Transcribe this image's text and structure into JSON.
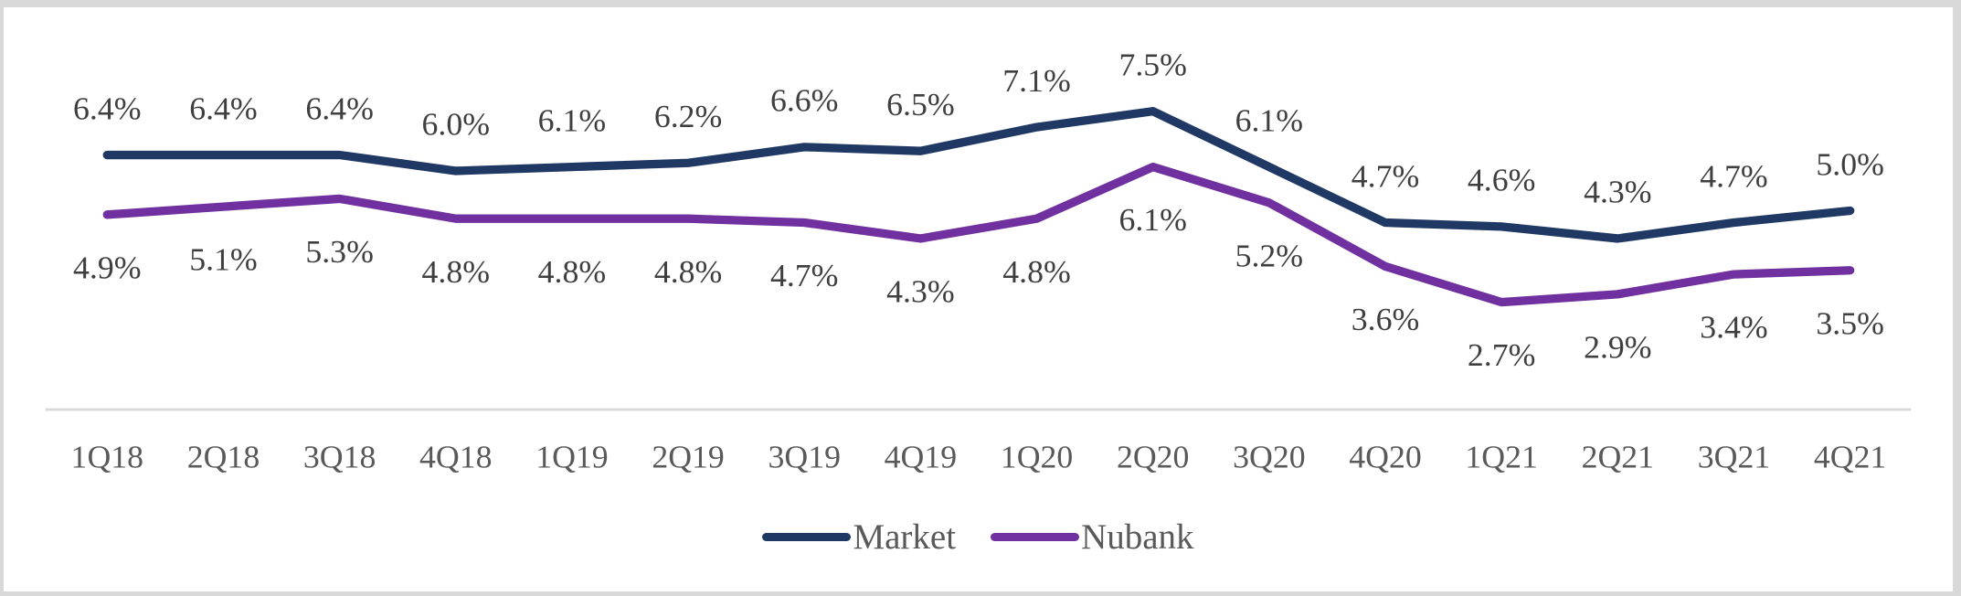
{
  "chart_data": {
    "type": "line",
    "title": "",
    "xlabel": "",
    "ylabel": "",
    "categories": [
      "1Q18",
      "2Q18",
      "3Q18",
      "4Q18",
      "1Q19",
      "2Q19",
      "3Q19",
      "4Q19",
      "1Q20",
      "2Q20",
      "3Q20",
      "4Q20",
      "1Q21",
      "2Q21",
      "3Q21",
      "4Q21"
    ],
    "series": [
      {
        "name": "Market",
        "color": "#1F3864",
        "label_position": "above",
        "values": [
          6.4,
          6.4,
          6.4,
          6.0,
          6.1,
          6.2,
          6.6,
          6.5,
          7.1,
          7.5,
          6.1,
          4.7,
          4.6,
          4.3,
          4.7,
          5.0
        ],
        "labels": [
          "6.4%",
          "6.4%",
          "6.4%",
          "6.0%",
          "6.1%",
          "6.2%",
          "6.6%",
          "6.5%",
          "7.1%",
          "7.5%",
          "6.1%",
          "4.7%",
          "4.6%",
          "4.3%",
          "4.7%",
          "5.0%"
        ]
      },
      {
        "name": "Nubank",
        "color": "#7030A0",
        "label_position": "below",
        "values": [
          4.9,
          5.1,
          5.3,
          4.8,
          4.8,
          4.8,
          4.7,
          4.3,
          4.8,
          6.1,
          5.2,
          3.6,
          2.7,
          2.9,
          3.4,
          3.5
        ],
        "labels": [
          "4.9%",
          "5.1%",
          "5.3%",
          "4.8%",
          "4.8%",
          "4.8%",
          "4.7%",
          "4.3%",
          "4.8%",
          "6.1%",
          "5.2%",
          "3.6%",
          "2.7%",
          "2.9%",
          "3.4%",
          "3.5%"
        ]
      }
    ],
    "ylim": [
      0,
      8
    ],
    "grid": false,
    "legend_position": "bottom-center",
    "colors": {
      "axis_line": "#D9D9D9",
      "data_label": "#3F3F3F",
      "tick_label": "#595959",
      "legend_text": "#595959",
      "frame_border": "#D9D9D9",
      "background": "#FFFFFF"
    }
  }
}
